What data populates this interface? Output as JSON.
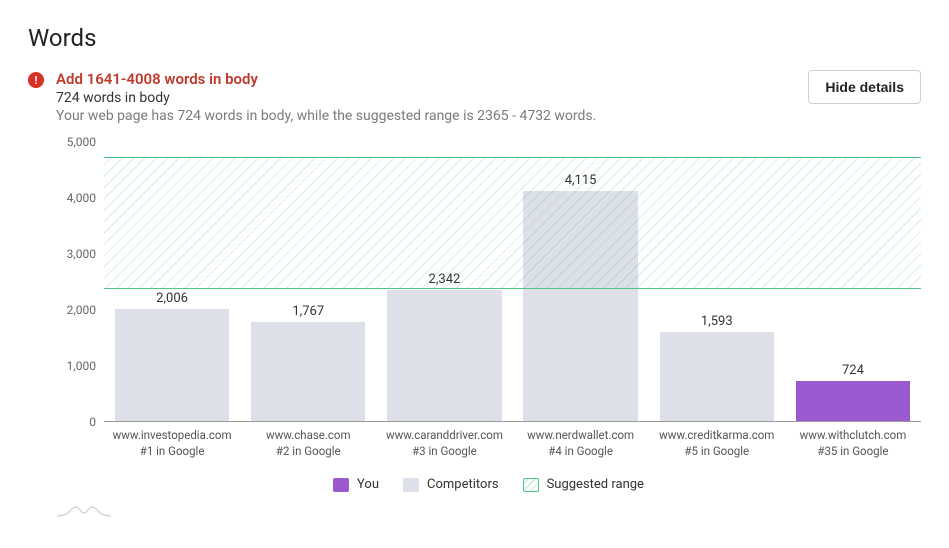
{
  "title": "Words",
  "alert": {
    "icon": "!",
    "headline": "Add 1641-4008 words in body",
    "subline": "724 words in body",
    "description": "Your web page has 724 words in body, while the suggested range is 2365 - 4732 words."
  },
  "button": {
    "hide_details": "Hide details"
  },
  "chart": {
    "type": "bar",
    "ylim": [
      0,
      5000
    ],
    "ytick_step": 1000,
    "yticks": [
      "0",
      "1,000",
      "2,000",
      "3,000",
      "4,000",
      "5,000"
    ],
    "suggested_range": {
      "min": 2365,
      "max": 4732
    },
    "bar_width_pct": 84,
    "colors": {
      "you": "#9b59d0",
      "competitor": "#dde0e8",
      "range_line": "#4fc58a",
      "axis": "#999999",
      "value_label": "#333333",
      "tick_label": "#666666"
    },
    "series": [
      {
        "domain": "www.investopedia.com",
        "rank": "#1 in Google",
        "value": 2006,
        "value_label": "2,006",
        "kind": "competitor"
      },
      {
        "domain": "www.chase.com",
        "rank": "#2 in Google",
        "value": 1767,
        "value_label": "1,767",
        "kind": "competitor"
      },
      {
        "domain": "www.caranddriver.com",
        "rank": "#3 in Google",
        "value": 2342,
        "value_label": "2,342",
        "kind": "competitor"
      },
      {
        "domain": "www.nerdwallet.com",
        "rank": "#4 in Google",
        "value": 4115,
        "value_label": "4,115",
        "kind": "competitor"
      },
      {
        "domain": "www.creditkarma.com",
        "rank": "#5 in Google",
        "value": 1593,
        "value_label": "1,593",
        "kind": "competitor"
      },
      {
        "domain": "www.withclutch.com",
        "rank": "#35 in Google",
        "value": 724,
        "value_label": "724",
        "kind": "you"
      }
    ]
  },
  "legend": {
    "you": "You",
    "competitors": "Competitors",
    "range": "Suggested range"
  }
}
